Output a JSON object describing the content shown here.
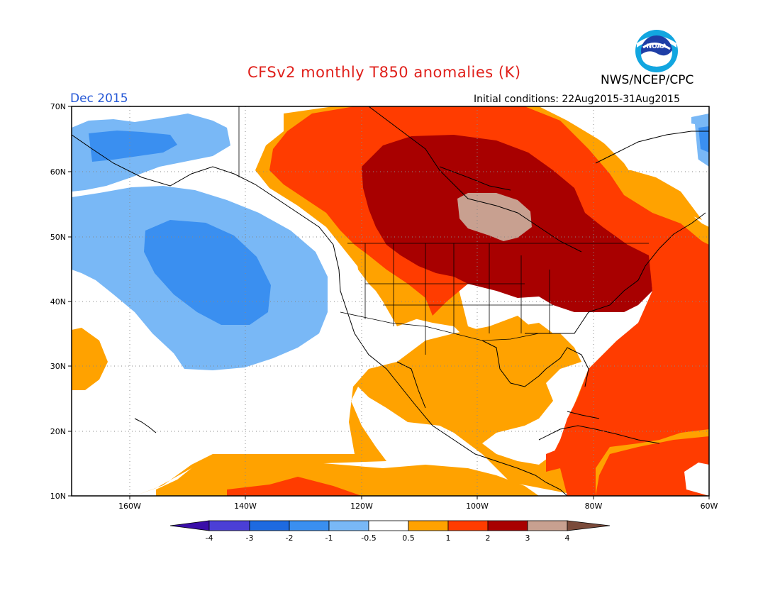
{
  "header": {
    "title": "CFSv2 monthly T850 anomalies (K)",
    "month": "Dec 2015",
    "initial_conditions": "Initial conditions: 22Aug2015-31Aug2015",
    "agency": "NWS/NCEP/CPC",
    "logo_text": "NOAA"
  },
  "map": {
    "lat_labels": [
      "70N",
      "60N",
      "50N",
      "40N",
      "30N",
      "20N",
      "10N"
    ],
    "lon_labels": [
      "160W",
      "140W",
      "120W",
      "100W",
      "80W",
      "60W"
    ],
    "lat_range": [
      10,
      70
    ],
    "lon_range": [
      -170,
      -60
    ],
    "grid": "dotted"
  },
  "colorbar": {
    "labels": [
      "-4",
      "-3",
      "-2",
      "-1",
      "-0.5",
      "0.5",
      "1",
      "2",
      "3",
      "4"
    ],
    "colors": [
      "#3a0ea8",
      "#4b3fd6",
      "#1e6ae0",
      "#3a8ff0",
      "#79b8f6",
      "#ffffff",
      "#ffa200",
      "#ff3c00",
      "#a80000",
      "#c8a090",
      "#7a4a3a"
    ]
  },
  "colors": {
    "title": "#e0201b",
    "month": "#2457d6",
    "blue_light": "#79b8f6",
    "blue_mid": "#3a8ff0",
    "orange": "#ffa200",
    "red": "#ff3c00",
    "dark_red": "#a80000",
    "tan": "#c8a090"
  }
}
